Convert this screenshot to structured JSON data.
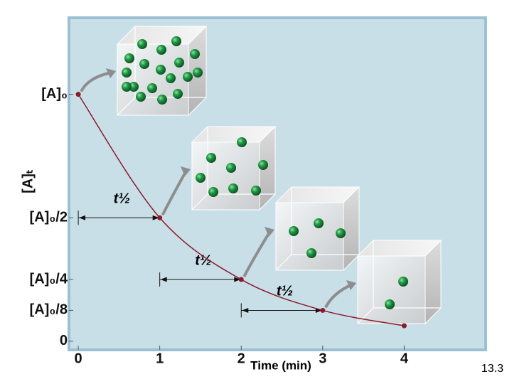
{
  "chart_data": {
    "type": "line",
    "x": [
      0,
      1,
      2,
      3,
      4
    ],
    "series": [
      {
        "name": "[A]t",
        "color": "#8b1a2b",
        "values": [
          1,
          0.5,
          0.25,
          0.125,
          0.0625
        ]
      }
    ],
    "xlim": [
      -0.114,
      5.0
    ],
    "ylim": [
      -0.035,
      1.31
    ],
    "xticks": [
      0,
      1,
      2,
      3,
      4
    ],
    "yticks": [
      {
        "value": 0,
        "label": "0"
      },
      {
        "value": 0.125,
        "label": "[A]₀/8"
      },
      {
        "value": 0.25,
        "label": "[A]₀/4"
      },
      {
        "value": 0.5,
        "label": "[A]₀/2"
      },
      {
        "value": 1,
        "label": "[A]₀"
      }
    ],
    "xlabel": "Time (min)",
    "ylabel": "[A]ₜ",
    "half_lives": [
      {
        "from": 0,
        "to": 1,
        "y": 0.5,
        "label": "t½"
      },
      {
        "from": 1,
        "to": 2,
        "y": 0.25,
        "label": "t½"
      },
      {
        "from": 2,
        "to": 3,
        "y": 0.125,
        "label": "t½"
      }
    ]
  },
  "slide_number": "13.3"
}
